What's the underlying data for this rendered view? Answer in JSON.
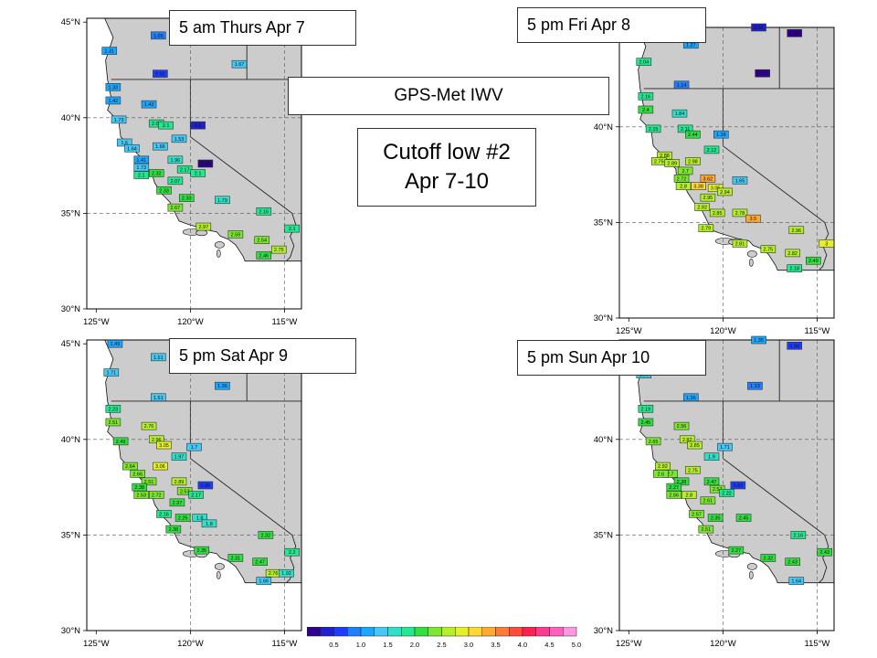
{
  "title": "GPS-Met IWV",
  "subtitle_lines": [
    "Cutoff low #2",
    "Apr 7-10"
  ],
  "colors": {
    "land": "#cccccc",
    "ocean": "#ffffff"
  },
  "axes": {
    "lat_ticks": [
      "30°N",
      "35°N",
      "40°N",
      "45°N"
    ],
    "lon_ticks": [
      "125°W",
      "120°W",
      "115°W"
    ],
    "lon_range": [
      -125.5,
      -114.1
    ],
    "lat_range": [
      30,
      45.2
    ]
  },
  "colorbar": {
    "tick_labels": [
      "0.5",
      "1.0",
      "1.5",
      "2.0",
      "2.5",
      "3.0",
      "3.5",
      "4.0",
      "4.5",
      "5.0"
    ],
    "colors": [
      "#300090",
      "#2020d0",
      "#1e3cff",
      "#1f7fff",
      "#19a6ff",
      "#45c8f5",
      "#2fe0c8",
      "#22e890",
      "#30e040",
      "#7ce82c",
      "#b4ef28",
      "#e6f028",
      "#ffd633",
      "#ffa832",
      "#ff7a36",
      "#ff4a3c",
      "#ff2050",
      "#ff3890",
      "#ff60c0",
      "#ff98e0"
    ],
    "min": 0.25,
    "max": 5.25
  },
  "panels": [
    {
      "label": "5 am Thurs Apr 7",
      "stations": [
        {
          "lon": -124.3,
          "lat": 43.5,
          "v": 1.31
        },
        {
          "lon": -121.7,
          "lat": 44.3,
          "v": 1.05
        },
        {
          "lon": -121.6,
          "lat": 42.3,
          "v": 0.92
        },
        {
          "lon": -117.4,
          "lat": 42.8,
          "v": 1.67
        },
        {
          "lon": -124.1,
          "lat": 41.6,
          "v": 1.33
        },
        {
          "lon": -124.1,
          "lat": 40.9,
          "v": 1.42
        },
        {
          "lon": -122.2,
          "lat": 40.7,
          "v": 1.43
        },
        {
          "lon": -123.8,
          "lat": 39.9,
          "v": 1.73
        },
        {
          "lon": -121.8,
          "lat": 39.7,
          "v": 2.05
        },
        {
          "lon": -121.3,
          "lat": 39.6,
          "v": 2.1
        },
        {
          "lon": -119.6,
          "lat": 39.6,
          "v": 0.5
        },
        {
          "lon": -123.5,
          "lat": 38.7,
          "v": 1.6
        },
        {
          "lon": -120.6,
          "lat": 38.9,
          "v": 1.53
        },
        {
          "lon": -123.1,
          "lat": 38.4,
          "v": 1.64
        },
        {
          "lon": -121.6,
          "lat": 38.5,
          "v": 1.66
        },
        {
          "lon": -122.6,
          "lat": 37.8,
          "v": 1.41
        },
        {
          "lon": -120.8,
          "lat": 37.8,
          "v": 1.96
        },
        {
          "lon": -122.6,
          "lat": 37.4,
          "v": 1.73
        },
        {
          "lon": -119.2,
          "lat": 37.6,
          "v": 0.48
        },
        {
          "lon": -122.6,
          "lat": 37,
          "v": 2.1
        },
        {
          "lon": -121.8,
          "lat": 37.1,
          "v": 2.32
        },
        {
          "lon": -120.3,
          "lat": 37.3,
          "v": 2.17
        },
        {
          "lon": -119.6,
          "lat": 37.1,
          "v": 2.1
        },
        {
          "lon": -120.8,
          "lat": 36.7,
          "v": 2.07
        },
        {
          "lon": -121.4,
          "lat": 36.2,
          "v": 2.33
        },
        {
          "lon": -120.2,
          "lat": 35.8,
          "v": 2.33
        },
        {
          "lon": -118.3,
          "lat": 35.7,
          "v": 1.79
        },
        {
          "lon": -120.8,
          "lat": 35.3,
          "v": 2.67
        },
        {
          "lon": -116.1,
          "lat": 35.1,
          "v": 2.16
        },
        {
          "lon": -119.3,
          "lat": 34.3,
          "v": 2.97
        },
        {
          "lon": -117.6,
          "lat": 33.9,
          "v": 2.59
        },
        {
          "lon": -114.6,
          "lat": 34.2,
          "v": 2.1
        },
        {
          "lon": -116.2,
          "lat": 33.6,
          "v": 2.54
        },
        {
          "lon": -115.3,
          "lat": 33.1,
          "v": 2.75
        },
        {
          "lon": -116.1,
          "lat": 32.8,
          "v": 2.46
        }
      ]
    },
    {
      "label": "5 pm Fri Apr 8",
      "stations": [
        {
          "lon": -118.1,
          "lat": 45.2,
          "v": 0.51
        },
        {
          "lon": -116.2,
          "lat": 44.9,
          "v": 0.45
        },
        {
          "lon": -121.7,
          "lat": 44.3,
          "v": 1.27
        },
        {
          "lon": -124.2,
          "lat": 43.4,
          "v": 2.04
        },
        {
          "lon": -117.9,
          "lat": 42.8,
          "v": 0.37
        },
        {
          "lon": -122.2,
          "lat": 42.2,
          "v": 1.14
        },
        {
          "lon": -124.1,
          "lat": 41.6,
          "v": 2.16
        },
        {
          "lon": -124.1,
          "lat": 40.9,
          "v": 2.4
        },
        {
          "lon": -122.3,
          "lat": 40.7,
          "v": 1.84
        },
        {
          "lon": -123.7,
          "lat": 39.9,
          "v": 2.15
        },
        {
          "lon": -122.0,
          "lat": 39.9,
          "v": 2.11
        },
        {
          "lon": -121.6,
          "lat": 39.6,
          "v": 2.44
        },
        {
          "lon": -120.1,
          "lat": 39.6,
          "v": 1.39
        },
        {
          "lon": -123.1,
          "lat": 38.5,
          "v": 2.88
        },
        {
          "lon": -120.6,
          "lat": 38.8,
          "v": 2.12
        },
        {
          "lon": -123.4,
          "lat": 38.2,
          "v": 2.75
        },
        {
          "lon": -122.7,
          "lat": 38.1,
          "v": 2.89
        },
        {
          "lon": -121.6,
          "lat": 38.2,
          "v": 2.98
        },
        {
          "lon": -122.0,
          "lat": 37.7,
          "v": 2.7
        },
        {
          "lon": -120.8,
          "lat": 37.3,
          "v": 3.62
        },
        {
          "lon": -119.1,
          "lat": 37.2,
          "v": 1.65
        },
        {
          "lon": -122.2,
          "lat": 37.3,
          "v": 2.72
        },
        {
          "lon": -120.4,
          "lat": 36.8,
          "v": 3.05
        },
        {
          "lon": -122.1,
          "lat": 36.9,
          "v": 2.8
        },
        {
          "lon": -121.3,
          "lat": 36.9,
          "v": 3.38
        },
        {
          "lon": -119.9,
          "lat": 36.6,
          "v": 2.94
        },
        {
          "lon": -120.8,
          "lat": 36.3,
          "v": 2.95
        },
        {
          "lon": -121.1,
          "lat": 35.8,
          "v": 2.92
        },
        {
          "lon": -120.3,
          "lat": 35.5,
          "v": 2.85
        },
        {
          "lon": -119.1,
          "lat": 35.5,
          "v": 2.78
        },
        {
          "lon": -118.4,
          "lat": 35.2,
          "v": 3.5
        },
        {
          "lon": -120.9,
          "lat": 34.7,
          "v": 2.79
        },
        {
          "lon": -116.1,
          "lat": 34.6,
          "v": 2.96
        },
        {
          "lon": -119.1,
          "lat": 33.9,
          "v": 2.81
        },
        {
          "lon": -117.6,
          "lat": 33.6,
          "v": 2.75
        },
        {
          "lon": -114.5,
          "lat": 33.9,
          "v": 3.0
        },
        {
          "lon": -116.3,
          "lat": 33.4,
          "v": 2.82
        },
        {
          "lon": -115.2,
          "lat": 33.0,
          "v": 2.49
        },
        {
          "lon": -116.2,
          "lat": 32.6,
          "v": 2.18
        }
      ]
    },
    {
      "label": "5 pm Sat Apr 9",
      "stations": [
        {
          "lon": -124.0,
          "lat": 45.0,
          "v": 1.49
        },
        {
          "lon": -121.7,
          "lat": 44.3,
          "v": 1.51
        },
        {
          "lon": -124.2,
          "lat": 43.5,
          "v": 1.71
        },
        {
          "lon": -118.3,
          "lat": 42.8,
          "v": 1.36
        },
        {
          "lon": -121.7,
          "lat": 42.2,
          "v": 1.51
        },
        {
          "lon": -124.1,
          "lat": 41.6,
          "v": 2.23
        },
        {
          "lon": -124.1,
          "lat": 40.9,
          "v": 2.51
        },
        {
          "lon": -122.2,
          "lat": 40.7,
          "v": 2.76
        },
        {
          "lon": -123.7,
          "lat": 39.9,
          "v": 2.49
        },
        {
          "lon": -121.8,
          "lat": 40.0,
          "v": 2.96
        },
        {
          "lon": -121.4,
          "lat": 39.7,
          "v": 3.05
        },
        {
          "lon": -119.8,
          "lat": 39.6,
          "v": 1.7
        },
        {
          "lon": -120.6,
          "lat": 39.1,
          "v": 1.97
        },
        {
          "lon": -123.2,
          "lat": 38.6,
          "v": 2.64
        },
        {
          "lon": -121.6,
          "lat": 38.6,
          "v": 3.06
        },
        {
          "lon": -122.8,
          "lat": 38.2,
          "v": 2.66
        },
        {
          "lon": -122.2,
          "lat": 37.8,
          "v": 2.51
        },
        {
          "lon": -120.6,
          "lat": 37.8,
          "v": 2.89
        },
        {
          "lon": -119.2,
          "lat": 37.6,
          "v": 0.85
        },
        {
          "lon": -122.7,
          "lat": 37.5,
          "v": 2.38
        },
        {
          "lon": -120.3,
          "lat": 37.3,
          "v": 2.53
        },
        {
          "lon": -119.7,
          "lat": 37.1,
          "v": 2.17
        },
        {
          "lon": -122.6,
          "lat": 37.1,
          "v": 2.53
        },
        {
          "lon": -121.8,
          "lat": 37.1,
          "v": 2.72
        },
        {
          "lon": -120.7,
          "lat": 36.7,
          "v": 2.37
        },
        {
          "lon": -121.4,
          "lat": 36.1,
          "v": 2.16
        },
        {
          "lon": -120.4,
          "lat": 35.9,
          "v": 2.25
        },
        {
          "lon": -119.5,
          "lat": 35.9,
          "v": 1.8
        },
        {
          "lon": -119.0,
          "lat": 35.6,
          "v": 1.8
        },
        {
          "lon": -120.9,
          "lat": 35.3,
          "v": 2.38
        },
        {
          "lon": -116.0,
          "lat": 35.0,
          "v": 2.32
        },
        {
          "lon": -119.4,
          "lat": 34.2,
          "v": 2.35
        },
        {
          "lon": -117.6,
          "lat": 33.8,
          "v": 2.31
        },
        {
          "lon": -114.6,
          "lat": 34.1,
          "v": 2.2
        },
        {
          "lon": -116.3,
          "lat": 33.6,
          "v": 2.47
        },
        {
          "lon": -115.6,
          "lat": 33.0,
          "v": 2.76
        },
        {
          "lon": -114.9,
          "lat": 33.0,
          "v": 1.92
        },
        {
          "lon": -116.1,
          "lat": 32.6,
          "v": 1.66
        }
      ]
    },
    {
      "label": "5 pm Sun Apr 10",
      "stations": [
        {
          "lon": -118.1,
          "lat": 45.2,
          "v": 1.35
        },
        {
          "lon": -116.2,
          "lat": 44.9,
          "v": 0.98
        },
        {
          "lon": -124.2,
          "lat": 43.4,
          "v": 1.55
        },
        {
          "lon": -118.3,
          "lat": 42.8,
          "v": 1.13
        },
        {
          "lon": -121.7,
          "lat": 42.2,
          "v": 1.36
        },
        {
          "lon": -124.1,
          "lat": 41.6,
          "v": 2.19
        },
        {
          "lon": -124.1,
          "lat": 40.9,
          "v": 2.45
        },
        {
          "lon": -122.2,
          "lat": 40.7,
          "v": 2.56
        },
        {
          "lon": -123.7,
          "lat": 39.9,
          "v": 2.65
        },
        {
          "lon": -121.9,
          "lat": 40.0,
          "v": 2.82
        },
        {
          "lon": -121.5,
          "lat": 39.7,
          "v": 2.85
        },
        {
          "lon": -119.9,
          "lat": 39.6,
          "v": 1.71
        },
        {
          "lon": -120.6,
          "lat": 39.1,
          "v": 1.9
        },
        {
          "lon": -123.2,
          "lat": 38.6,
          "v": 2.92
        },
        {
          "lon": -121.6,
          "lat": 38.4,
          "v": 2.75
        },
        {
          "lon": -122.8,
          "lat": 38.2,
          "v": 2.7
        },
        {
          "lon": -123.3,
          "lat": 38.2,
          "v": 2.6
        },
        {
          "lon": -122.2,
          "lat": 37.8,
          "v": 2.38
        },
        {
          "lon": -120.6,
          "lat": 37.8,
          "v": 2.47
        },
        {
          "lon": -119.2,
          "lat": 37.6,
          "v": 0.83
        },
        {
          "lon": -122.6,
          "lat": 37.5,
          "v": 2.27
        },
        {
          "lon": -120.3,
          "lat": 37.4,
          "v": 2.57
        },
        {
          "lon": -119.8,
          "lat": 37.2,
          "v": 2.22
        },
        {
          "lon": -122.6,
          "lat": 37.1,
          "v": 2.56
        },
        {
          "lon": -121.8,
          "lat": 37.1,
          "v": 2.8
        },
        {
          "lon": -120.8,
          "lat": 36.8,
          "v": 2.61
        },
        {
          "lon": -121.4,
          "lat": 36.1,
          "v": 2.57
        },
        {
          "lon": -120.4,
          "lat": 35.9,
          "v": 2.35
        },
        {
          "lon": -118.9,
          "lat": 35.9,
          "v": 2.45
        },
        {
          "lon": -120.9,
          "lat": 35.3,
          "v": 2.51
        },
        {
          "lon": -116.0,
          "lat": 35.0,
          "v": 2.16
        },
        {
          "lon": -119.3,
          "lat": 34.2,
          "v": 2.27
        },
        {
          "lon": -117.6,
          "lat": 33.8,
          "v": 2.32
        },
        {
          "lon": -114.6,
          "lat": 34.1,
          "v": 2.43
        },
        {
          "lon": -116.3,
          "lat": 33.6,
          "v": 2.43
        },
        {
          "lon": -116.1,
          "lat": 32.6,
          "v": 1.64
        }
      ]
    }
  ]
}
